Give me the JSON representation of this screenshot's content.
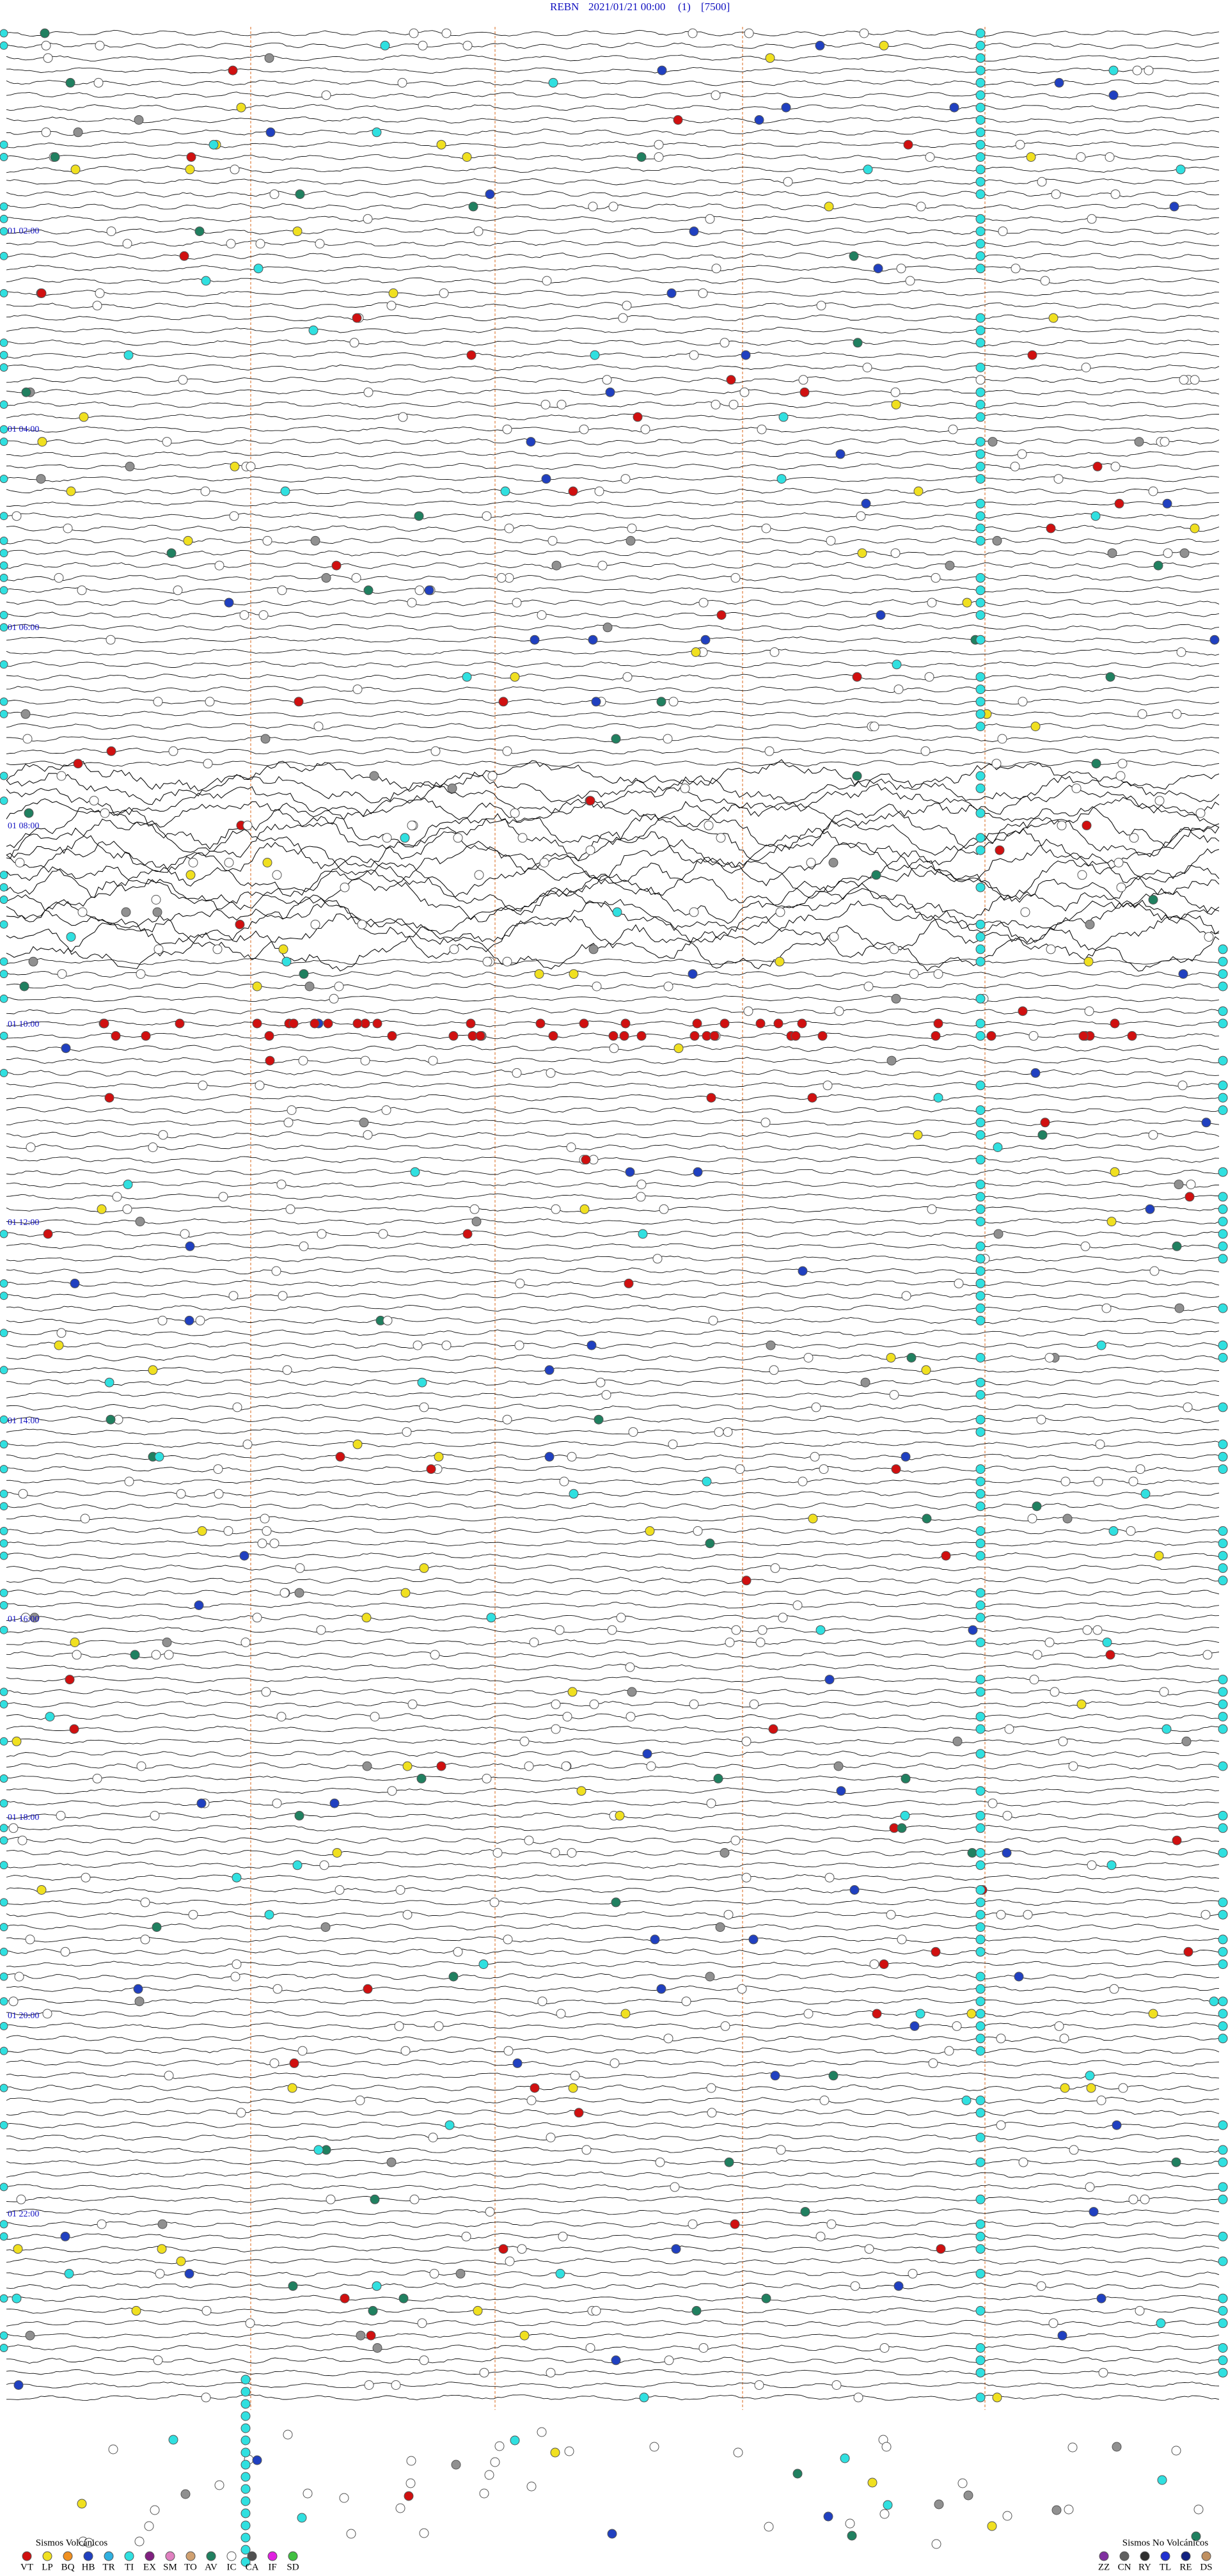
{
  "header": {
    "station": "REBN",
    "datetime": "2021/01/21 00:00",
    "channel": "(1)",
    "scale": "[7500]"
  },
  "time_labels": [
    "01 02:00",
    "01 04:00",
    "01 06:00",
    "01 08:00",
    "01 10:00",
    "01 12:00",
    "01 14:00",
    "01 16:00",
    "01 18:00",
    "01 20:00",
    "01 22:00"
  ],
  "legend": [
    {
      "title": "Sismos Volcánicos",
      "items": [
        {
          "label": "VT",
          "color": "#d01010"
        },
        {
          "label": "LP",
          "color": "#f0e020"
        },
        {
          "label": "BQ",
          "color": "#f09020"
        },
        {
          "label": "HB",
          "color": "#2040c0"
        },
        {
          "label": "TR",
          "color": "#30b0e0"
        },
        {
          "label": "TI",
          "color": "#30e0e0"
        },
        {
          "label": "EX",
          "color": "#802080"
        },
        {
          "label": "SM",
          "color": "#e080c0"
        },
        {
          "label": "TO",
          "color": "#d0a070"
        },
        {
          "label": "AV",
          "color": "#208060"
        },
        {
          "label": "IC",
          "color": "#ffffff"
        },
        {
          "label": "CA",
          "color": "#505050"
        },
        {
          "label": "IF",
          "color": "#e020e0"
        },
        {
          "label": "SD",
          "color": "#40c040"
        }
      ]
    },
    {
      "title": "Sismos No Volcánicos",
      "items": [
        {
          "label": "ZZ",
          "color": "#8030a0"
        },
        {
          "label": "CN",
          "color": "#606060"
        },
        {
          "label": "RY",
          "color": "#303030"
        },
        {
          "label": "TL",
          "color": "#2030d0"
        },
        {
          "label": "RE",
          "color": "#102080"
        },
        {
          "label": "DS",
          "color": "#c09060"
        }
      ]
    }
  ]
}
